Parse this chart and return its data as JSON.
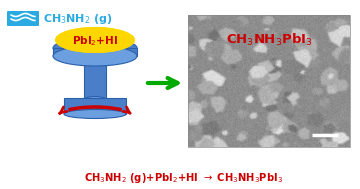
{
  "bg_color": "#ffffff",
  "cyan_color": "#29ABE2",
  "red_color": "#CC0000",
  "green_color": "#00AA00",
  "yellow_color": "#FFD700",
  "blue_color": "#4B7EC8",
  "blue_dark": "#2A5FAA",
  "blue_light": "#6B9FE0",
  "wave_label": "CH$_3$NH$_2$ (g)",
  "disk_label": "PbI$_2$+HI",
  "product_label": "CH$_3$NH$_3$PbI$_3$",
  "bottom_eq": "CH$_3$NH$_2$ (g)+PbI$_2$+HI $\\rightarrow$ CH$_3$NH$_3$PbI$_3$"
}
